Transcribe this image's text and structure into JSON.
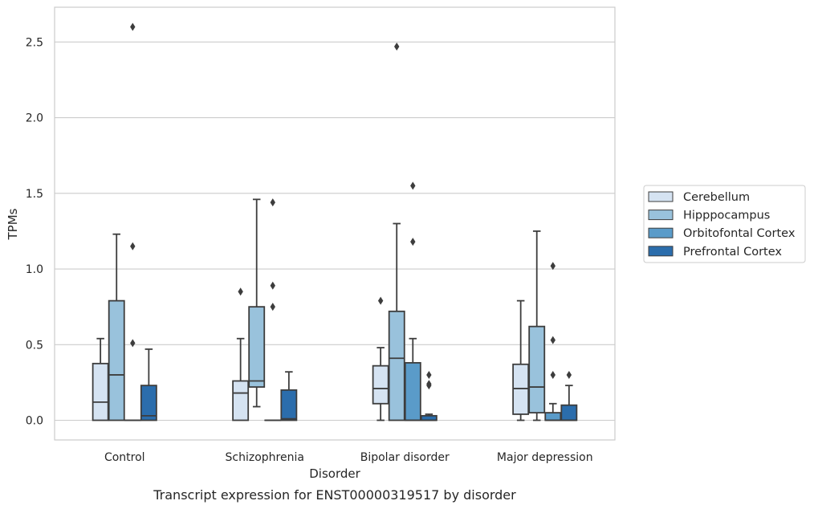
{
  "chart_data": {
    "type": "boxplot",
    "caption": "Transcript expression for ENST00000319517 by disorder",
    "xlabel": "Disorder",
    "ylabel": "TPMs",
    "ylim": [
      -0.13,
      2.73
    ],
    "yticks": [
      0.0,
      0.5,
      1.0,
      1.5,
      2.0,
      2.5
    ],
    "ytick_labels": [
      "0.0",
      "0.5",
      "1.0",
      "1.5",
      "2.0",
      "2.5"
    ],
    "grid": "horizontal",
    "legend_position": "right",
    "categories": [
      "Control",
      "Schizophrenia",
      "Bipolar disorder",
      "Major depression"
    ],
    "series": [
      {
        "name": "Cerebellum",
        "color": "#d5e3f2",
        "boxes": [
          {
            "q1": 0.0,
            "median": 0.12,
            "q3": 0.375,
            "whisker_low": 0.0,
            "whisker_high": 0.54,
            "outliers": []
          },
          {
            "q1": 0.0,
            "median": 0.18,
            "q3": 0.26,
            "whisker_low": 0.0,
            "whisker_high": 0.54,
            "outliers": [
              0.85
            ]
          },
          {
            "q1": 0.11,
            "median": 0.21,
            "q3": 0.36,
            "whisker_low": 0.0,
            "whisker_high": 0.48,
            "outliers": [
              0.79
            ]
          },
          {
            "q1": 0.04,
            "median": 0.21,
            "q3": 0.37,
            "whisker_low": 0.0,
            "whisker_high": 0.79,
            "outliers": []
          }
        ]
      },
      {
        "name": "Hipppocampus",
        "color": "#99c2dc",
        "boxes": [
          {
            "q1": 0.0,
            "median": 0.3,
            "q3": 0.79,
            "whisker_low": 0.0,
            "whisker_high": 1.23,
            "outliers": []
          },
          {
            "q1": 0.22,
            "median": 0.26,
            "q3": 0.75,
            "whisker_low": 0.09,
            "whisker_high": 1.46,
            "outliers": []
          },
          {
            "q1": 0.0,
            "median": 0.41,
            "q3": 0.72,
            "whisker_low": 0.0,
            "whisker_high": 1.3,
            "outliers": [
              2.47
            ]
          },
          {
            "q1": 0.05,
            "median": 0.22,
            "q3": 0.62,
            "whisker_low": 0.0,
            "whisker_high": 1.25,
            "outliers": []
          }
        ]
      },
      {
        "name": "Orbitofontal Cortex",
        "color": "#5a9bc9",
        "boxes": [
          {
            "q1": 0.0,
            "median": 0.0,
            "q3": 0.0,
            "whisker_low": 0.0,
            "whisker_high": 0.0,
            "outliers": [
              0.51,
              1.15,
              2.6
            ]
          },
          {
            "q1": 0.0,
            "median": 0.0,
            "q3": 0.0,
            "whisker_low": 0.0,
            "whisker_high": 0.0,
            "outliers": [
              0.75,
              0.89,
              1.44
            ]
          },
          {
            "q1": 0.0,
            "median": 0.0,
            "q3": 0.38,
            "whisker_low": 0.0,
            "whisker_high": 0.54,
            "outliers": [
              1.18,
              1.55
            ]
          },
          {
            "q1": 0.0,
            "median": 0.0,
            "q3": 0.05,
            "whisker_low": 0.0,
            "whisker_high": 0.11,
            "outliers": [
              0.3,
              0.53,
              1.02
            ]
          }
        ]
      },
      {
        "name": "Prefrontal Cortex",
        "color": "#2b6dac",
        "boxes": [
          {
            "q1": 0.0,
            "median": 0.03,
            "q3": 0.23,
            "whisker_low": 0.0,
            "whisker_high": 0.47,
            "outliers": []
          },
          {
            "q1": 0.0,
            "median": 0.01,
            "q3": 0.2,
            "whisker_low": 0.0,
            "whisker_high": 0.32,
            "outliers": []
          },
          {
            "q1": 0.0,
            "median": 0.0,
            "q3": 0.03,
            "whisker_low": 0.0,
            "whisker_high": 0.04,
            "outliers": [
              0.23,
              0.24,
              0.3
            ]
          },
          {
            "q1": 0.0,
            "median": 0.0,
            "q3": 0.1,
            "whisker_low": 0.0,
            "whisker_high": 0.23,
            "outliers": [
              0.3
            ]
          }
        ]
      }
    ]
  }
}
